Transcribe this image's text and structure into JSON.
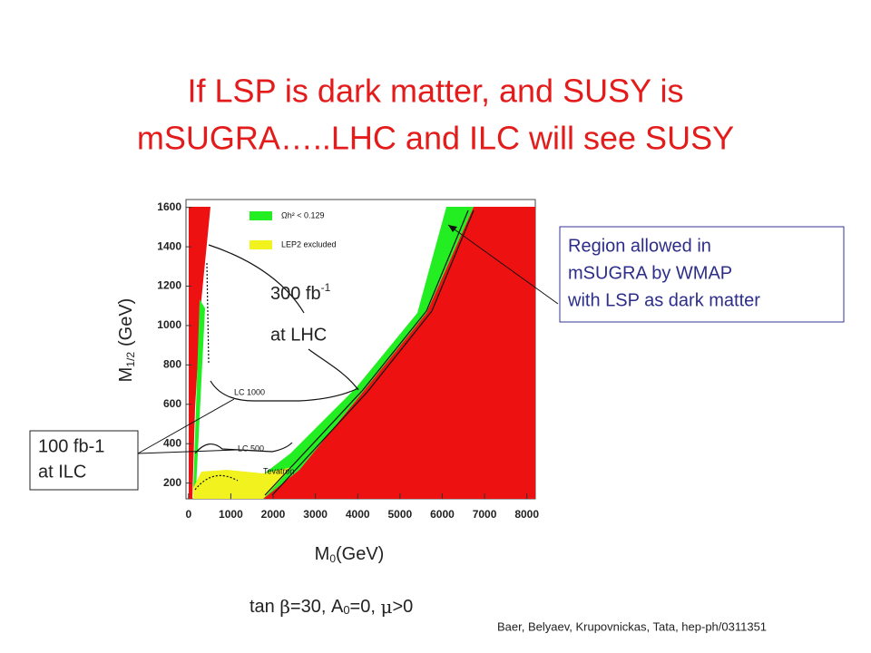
{
  "title": [
    "If LSP is dark matter, and SUSY is",
    "mSUGRA…..LHC and ILC will see SUSY"
  ],
  "chart_data": {
    "type": "region",
    "xlim": [
      -60,
      8200
    ],
    "ylim": [
      120,
      1640
    ],
    "xticks": [
      0,
      1000,
      2000,
      3000,
      4000,
      5000,
      6000,
      7000,
      8000
    ],
    "yticks": [
      200,
      400,
      600,
      800,
      1000,
      1200,
      1400,
      1600
    ],
    "x_label": [
      "M",
      "0",
      "(GeV)"
    ],
    "y_label": [
      "M",
      "1/2",
      "(GeV)"
    ],
    "legend": [
      {
        "name": "Ωh² < 0.129",
        "color": "#22ee22"
      },
      {
        "name": "LEP2 excluded",
        "color": "#f2f21e"
      }
    ],
    "region_color": "#ee1111",
    "curve_labels": [
      "LC 1000",
      "LC 500",
      "Tevatron"
    ]
  },
  "annotations": {
    "wmap": [
      "Region allowed in",
      "mSUGRA by WMAP",
      "with LSP as dark matter"
    ],
    "ilc": [
      "100 fb-1",
      "at ILC"
    ],
    "lhc": {
      "lumi": "300 fb",
      "exp": "-1",
      "where": "at LHC"
    }
  },
  "caption": [
    "tan ",
    "β",
    "=30, A",
    "0",
    "=0, ",
    "μ",
    ">0"
  ],
  "citation": "Baer, Belyaev, Krupovnickas, Tata, hep-ph/0311351"
}
